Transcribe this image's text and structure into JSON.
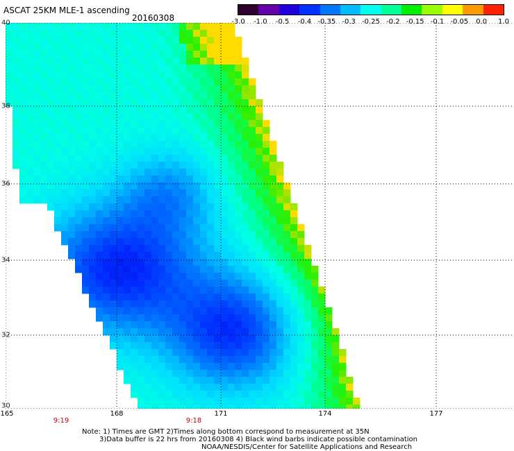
{
  "header": {
    "title": "ASCAT 25KM MLE-1 ascending",
    "date": "20160308"
  },
  "colorbar": {
    "tick_labels": [
      "-3.0",
      "-1.0",
      "-0.5",
      "-0.4",
      "-0.35",
      "-0.3",
      "-0.25",
      "-0.2",
      "-0.15",
      "-0.1",
      "-0.05",
      "0.0",
      "1.0"
    ],
    "colors": [
      "#300030",
      "#6600aa",
      "#2200dd",
      "#0033ff",
      "#0077ff",
      "#00bbff",
      "#00ffee",
      "#00ff99",
      "#00ee00",
      "#99ff00",
      "#ffff00",
      "#ff9900",
      "#ff2200"
    ]
  },
  "map": {
    "lat_labels": [
      "40",
      "38",
      "36",
      "34",
      "32",
      "30"
    ],
    "lon_labels": [
      "165",
      "168",
      "171",
      "174",
      "177"
    ],
    "time_labels": [
      "9:19",
      "9:18"
    ],
    "grid": true
  },
  "notes": {
    "line1": "Note: 1) Times are GMT 2)Times along bottom correspond to measurement at 35N",
    "line2": "3)Data buffer is 22 hrs from 20160308 4) Black wind barbs indicate possible contamination",
    "line3": "NOAA/NESDIS/Center for Satellite Applications and Research"
  }
}
